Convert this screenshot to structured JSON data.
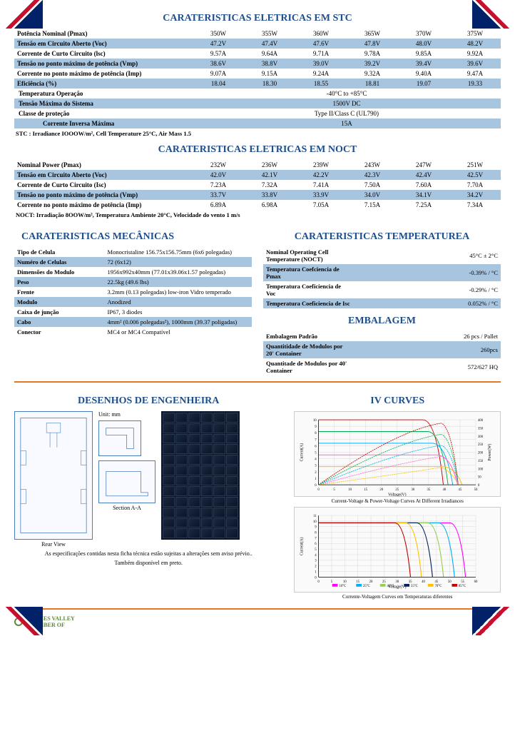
{
  "stc": {
    "title": "CARATERISTICAS ELETRICAS  EM   STC",
    "rows": [
      {
        "label": "Potência Nominal  (Pmax)",
        "vals": [
          "350W",
          "355W",
          "360W",
          "365W",
          "370W",
          "375W"
        ],
        "hl": false
      },
      {
        "label": "Tensão em Circuito Aberto (Voc)",
        "vals": [
          "47.2V",
          "47.4V",
          "47.6V",
          "47.8V",
          "48.0V",
          "48.2V"
        ],
        "hl": true
      },
      {
        "label": "Corrente de Curto Circuito (lsc)",
        "vals": [
          "9.57A",
          "9.64A",
          "9.71A",
          "9.78A",
          "9.85A",
          "9.92A"
        ],
        "hl": false
      },
      {
        "label": "Tensão no ponto máximo de potência (Vmp)",
        "vals": [
          "38.6V",
          "38.8V",
          "39.0V",
          "39.2V",
          "39.4V",
          "39.6V"
        ],
        "hl": true
      },
      {
        "label": "Corrente no ponto máximo de potência (Imp)",
        "vals": [
          "9.07A",
          "9.15A",
          "9.24A",
          "9.32A",
          "9.40A",
          "9.47A"
        ],
        "hl": false
      },
      {
        "label": "Eficiência  (%)",
        "vals": [
          "18.04",
          "18.30",
          "18.55",
          "18.81",
          "19.07",
          "19.33"
        ],
        "hl": true
      }
    ],
    "extra": [
      {
        "label": "Temperatura Operação",
        "val": "-40°C  to  +85°C",
        "hl": false
      },
      {
        "label": "Tensão Máxima do Sistema",
        "val": "1500V  DC",
        "hl": true
      },
      {
        "label": "Classe de proteção",
        "val": "Type  II/Class  C  (UL790)",
        "hl": false
      },
      {
        "label": "Corrente Inversa Máxima",
        "val": "15A",
        "hl": true
      }
    ],
    "note": "STC : Irradiance IOOOW/m², Cell Temperature 25°C, Air Mass 1.5"
  },
  "noct": {
    "title": "CARATERISTICAS ELETRICAS  EM    NOCT",
    "rows": [
      {
        "label": "Nominal  Power  (Pmax)",
        "vals": [
          "232W",
          "236W",
          "239W",
          "243W",
          "247W",
          "251W"
        ],
        "hl": false
      },
      {
        "label": "Tensão em Circuito Aberto (Voc)",
        "vals": [
          "42.0V",
          "42.1V",
          "42.2V",
          "42.3V",
          "42.4V",
          "42.5V"
        ],
        "hl": true
      },
      {
        "label": "Corrente de Curto Circuito (Isc)",
        "vals": [
          "7.23A",
          "7.32A",
          "7.41A",
          "7.50A",
          "7.60A",
          "7.70A"
        ],
        "hl": false
      },
      {
        "label": "Tensão no ponto máximo de potência (Vmp)",
        "vals": [
          "33.7V",
          "33.8V",
          "33.9V",
          "34.0V",
          "34.1V",
          "34.2V"
        ],
        "hl": true
      },
      {
        "label": "Corrente no ponto máximo de potência (Imp)",
        "vals": [
          "6.89A",
          "6.98A",
          "7.05A",
          "7.15A",
          "7.25A",
          "7.34A"
        ],
        "hl": false
      }
    ],
    "note": "NOCT:  Irradiação  8OOW/m²,   Temperatura Ambiente  20°C,  Velocidade do vento 1  m/s"
  },
  "mech": {
    "title": "CARATERISTICAS MECÂNICAS",
    "rows": [
      {
        "k": "Tipo de Celula",
        "v": "Monocristaline 156.75x156.75mm (6x6 polegadas)",
        "hl": false
      },
      {
        "k": "Numéro de Celulas",
        "v": "72 (6x12)",
        "hl": true
      },
      {
        "k": "Dimensões do Modulo",
        "v": "1956x992x40mm (77.01x39.06x1.57 polegadas)",
        "hl": false
      },
      {
        "k": "Peso",
        "v": "22.5kg (49.6 lbs)",
        "hl": true
      },
      {
        "k": "Frente",
        "v": "3.2mm (0.13 polegadas) low-iron Vidro temperado",
        "hl": false
      },
      {
        "k": "Modulo",
        "v": "Anodized",
        "hl": true
      },
      {
        "k": "Caixa de junção",
        "v": "IP67, 3 diodes",
        "hl": false
      },
      {
        "k": "Cabo",
        "v": "4mm² (0.006 polegadas²), 1000mm (39.37 poligadas)",
        "hl": true
      },
      {
        "k": "Conector",
        "v": "MC4 or MC4 Compatível",
        "hl": false
      }
    ]
  },
  "temp": {
    "title": "CARATERISTICAS TEMPERATUREA",
    "rows": [
      {
        "k": "Nominal Operating Cell Temperature (NOCT)",
        "v": "45°C ± 2°C",
        "hl": false
      },
      {
        "k": "Temperatura Coefciencia de Pmax",
        "v": "-0.39% / °C",
        "hl": true
      },
      {
        "k": "Temperatura Coeficiencia de Voc",
        "v": "-0.29% / °C",
        "hl": false
      },
      {
        "k": "Temperatura Coeficiencia de Isc",
        "v": "0.052% / °C",
        "hl": true
      }
    ]
  },
  "pack": {
    "title": "EMBALAGEM",
    "rows": [
      {
        "k": "Embalagem Padrão",
        "v": "26 pcs / Pallet",
        "hl": false
      },
      {
        "k": "Quantitidade de Modulos por 20' Container",
        "v": "260pcs",
        "hl": true
      },
      {
        "k": "Quantitade de Modulos por 40' Container",
        "v": "572/627 HQ",
        "hl": false
      }
    ]
  },
  "drawings": {
    "title": "DESENHOS DE ENGENHEIRA",
    "unit": "Unit: mm",
    "rear": "Rear View",
    "section": "Section A-A"
  },
  "curves": {
    "title": "IV   CURVES",
    "cap1": "Current-Voltage & Power-Voltage Curves At Different Irradiances",
    "cap2": "Corrente-Voltagem Curves em Temperaturas diferentes",
    "chart1": {
      "xlabel": "Voltage(V)",
      "ylabel_l": "Current(A)",
      "ylabel_r": "Power(W)",
      "xlim": [
        0,
        50
      ],
      "xtick_step": 5,
      "ylim_l": [
        0,
        10
      ],
      "ytick_step_l": 1,
      "ylim_r": [
        0,
        400
      ],
      "ytick_step_r": 50,
      "iv_colors": [
        "#c00000",
        "#00b050",
        "#00b0f0",
        "#ff66cc",
        "#ffc000"
      ],
      "pv_colors": [
        "#c00000",
        "#00b050",
        "#00b0f0",
        "#ff66cc",
        "#ffc000"
      ],
      "grid_color": "#d0d0d0"
    },
    "chart2": {
      "xlabel": "Voltage(V)",
      "ylabel": "Current(A)",
      "xlim": [
        0,
        60
      ],
      "ylim": [
        0,
        11
      ],
      "temp_labels": [
        "10°C",
        "25°C",
        "40°C",
        "55°C",
        "70°C",
        "85°C"
      ],
      "colors": [
        "#ff00ff",
        "#00b0f0",
        "#92d050",
        "#002060",
        "#ffc000",
        "#c00000"
      ],
      "grid_color": "#d0d0d0"
    }
  },
  "footer": {
    "line1": "As especificações contidas nesta ficha técnica estão sujeitas a alterações sem aviso prévio..",
    "line2": "Também disponível em preto.",
    "logo": "THAMES VALLEY",
    "logo2": "CHAMBER OF"
  }
}
